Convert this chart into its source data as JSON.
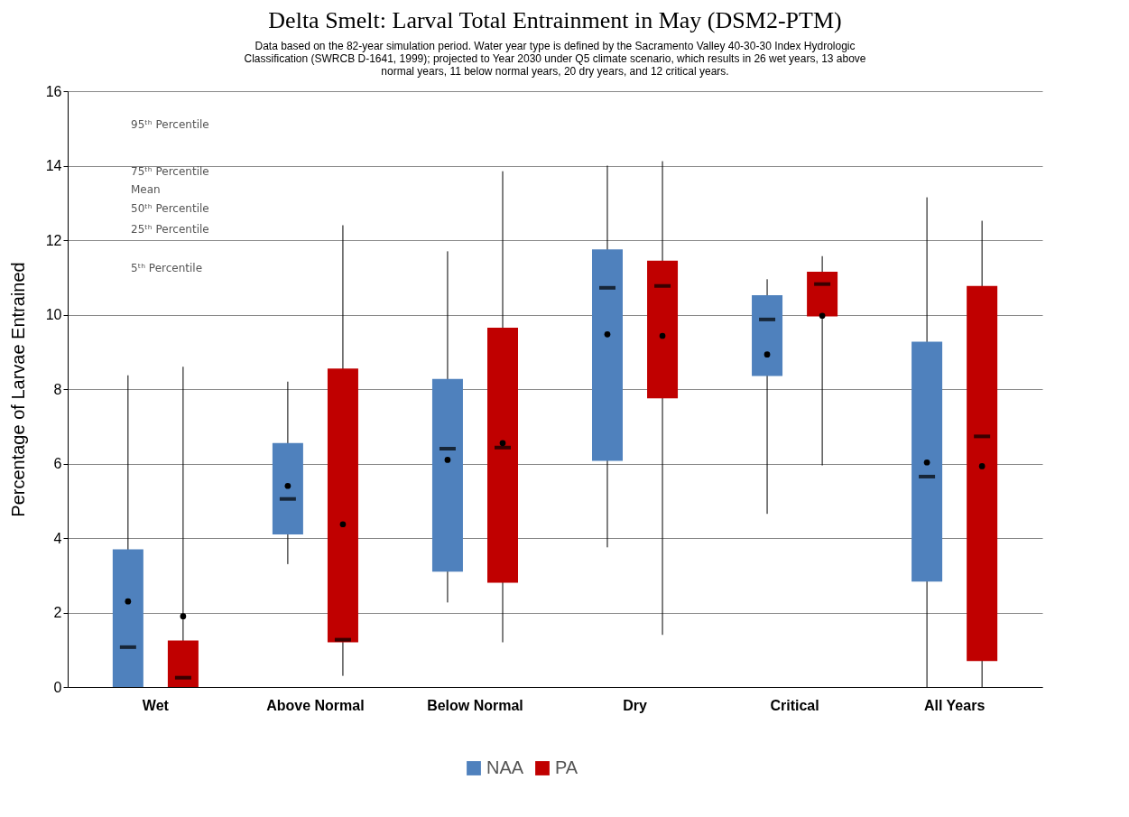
{
  "chart_data": {
    "type": "box",
    "title": "Delta Smelt: Larval Total Entrainment in May (DSM2-PTM)",
    "subtitle": "Data based on the 82-year simulation period.  Water year type is defined by the Sacramento Valley 40-30-30 Index Hydrologic Classification (SWRCB D-1641, 1999); projected to Year 2030 under Q5 climate scenario, which results in 26 wet years, 13 above normal years, 11 below normal years, 20 dry years, and 12 critical years.",
    "ylabel": "Percentage of Larvae Entrained",
    "categories": [
      "Wet",
      "Above Normal",
      "Below Normal",
      "Dry",
      "Critical",
      "All Years"
    ],
    "series": [
      {
        "name": "NAA",
        "color": "#4f81bd",
        "boxes": [
          {
            "low": 0,
            "q1": 0,
            "median": 1.07,
            "q3": 3.7,
            "high": 8.37,
            "mean": 2.3
          },
          {
            "low": 3.3,
            "q1": 4.1,
            "median": 5.05,
            "q3": 6.55,
            "high": 8.2,
            "mean": 5.4
          },
          {
            "low": 2.27,
            "q1": 3.1,
            "median": 6.4,
            "q3": 8.27,
            "high": 11.7,
            "mean": 6.1
          },
          {
            "low": 3.75,
            "q1": 6.07,
            "median": 10.72,
            "q3": 11.75,
            "high": 14.0,
            "mean": 9.47
          },
          {
            "low": 4.65,
            "q1": 8.35,
            "median": 9.87,
            "q3": 10.52,
            "high": 10.95,
            "mean": 8.93
          },
          {
            "low": 0,
            "q1": 2.83,
            "median": 5.65,
            "q3": 9.27,
            "high": 13.15,
            "mean": 6.03
          }
        ]
      },
      {
        "name": "PA",
        "color": "#c00000",
        "boxes": [
          {
            "low": 0,
            "q1": 0,
            "median": 0.25,
            "q3": 1.25,
            "high": 8.6,
            "mean": 1.9
          },
          {
            "low": 0.3,
            "q1": 1.2,
            "median": 1.27,
            "q3": 8.55,
            "high": 12.4,
            "mean": 4.37
          },
          {
            "low": 1.2,
            "q1": 2.8,
            "median": 6.43,
            "q3": 9.65,
            "high": 13.85,
            "mean": 6.55
          },
          {
            "low": 1.4,
            "q1": 7.75,
            "median": 10.77,
            "q3": 11.45,
            "high": 14.12,
            "mean": 9.43
          },
          {
            "low": 5.95,
            "q1": 9.95,
            "median": 10.82,
            "q3": 11.15,
            "high": 11.57,
            "mean": 9.97
          },
          {
            "low": 0,
            "q1": 0.7,
            "median": 6.73,
            "q3": 10.77,
            "high": 12.52,
            "mean": 5.93
          }
        ]
      }
    ],
    "ylim": [
      0,
      16
    ],
    "yticks": [
      0,
      2,
      4,
      6,
      8,
      10,
      12,
      14,
      16
    ],
    "grid": "y",
    "legend": "bottom",
    "annotations": [
      "95ᵗʰ Percentile",
      "75ᵗʰ Percentile",
      "Mean",
      "50ᵗʰ Percentile",
      "25ᵗʰ Percentile",
      "5ᵗʰ Percentile"
    ]
  }
}
